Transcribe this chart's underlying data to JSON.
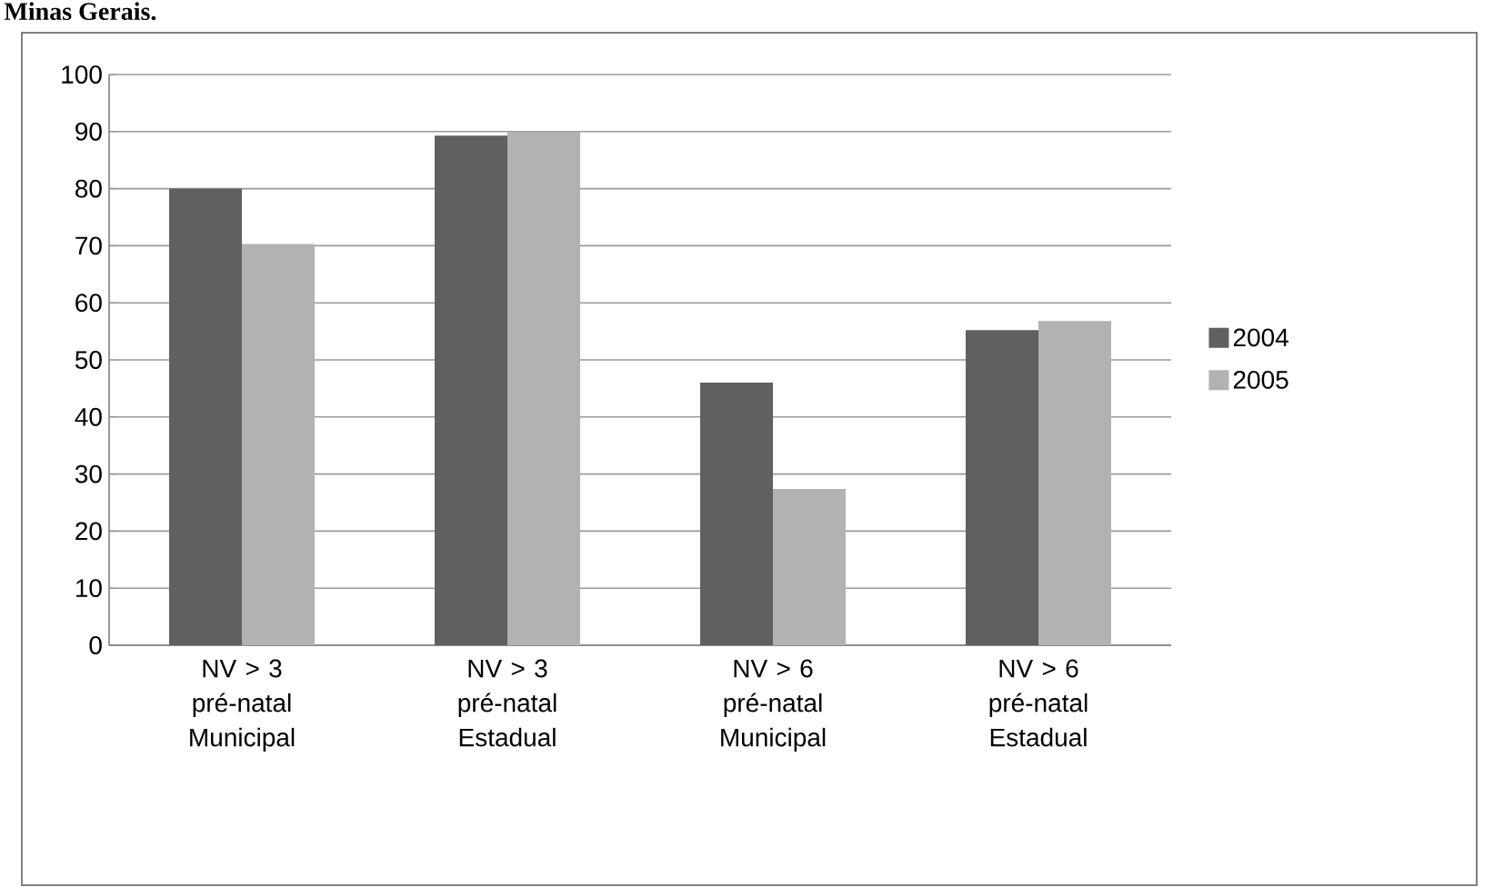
{
  "chart_data": {
    "type": "bar",
    "title": "Minas Gerais.",
    "categories": [
      "NV > 3 pré-natal Municipal",
      "NV > 3 pré-natal Estadual",
      "NV > 6 pré-natal Municipal",
      "NV > 6 pré-natal Estadual"
    ],
    "series": [
      {
        "name": "2004",
        "color": "#606060",
        "values": [
          80,
          89.3,
          46,
          55.2
        ]
      },
      {
        "name": "2005",
        "color": "#b2b2b2",
        "values": [
          70.3,
          90,
          27.4,
          56.8
        ]
      }
    ],
    "ylim": [
      0,
      100
    ],
    "yticks": [
      0,
      10,
      20,
      30,
      40,
      50,
      60,
      70,
      80,
      90,
      100
    ],
    "grid": "y",
    "legend": "right"
  }
}
